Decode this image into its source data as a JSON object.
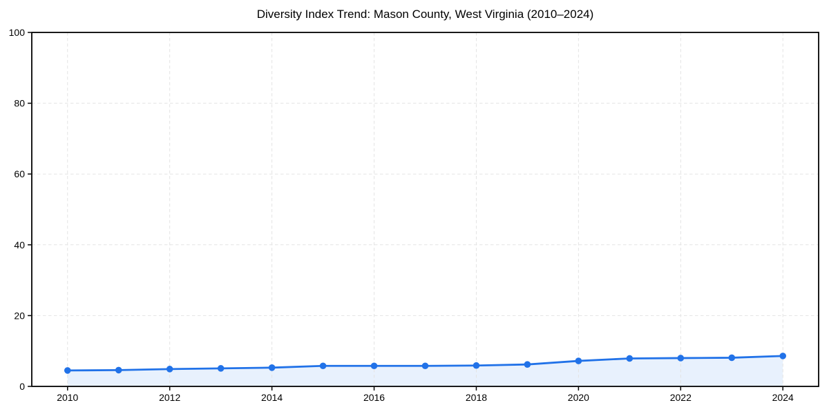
{
  "figure": {
    "title": "Diversity Index Trend: Mason County, West Virginia (2010–2024)"
  },
  "colors": {
    "background": "#ffffff",
    "line": "#2172e8",
    "marker": "#2172e8",
    "area_fill": "#2172e8",
    "area_fill_opacity": 0.1,
    "grid": "#e3e3e3",
    "axis": "#000000",
    "tick_text": "#000000",
    "title_text": "#000000"
  },
  "chart_data": {
    "type": "line",
    "title": "Diversity Index Trend: Mason County, West Virginia (2010–2024)",
    "xlabel": "",
    "ylabel": "",
    "xlim": [
      2009.3,
      2024.7
    ],
    "ylim": [
      0,
      100
    ],
    "xticks": [
      2010,
      2012,
      2014,
      2016,
      2018,
      2020,
      2022,
      2024
    ],
    "yticks": [
      0,
      20,
      40,
      60,
      80,
      100
    ],
    "grid": "dashed",
    "legend_position": "none",
    "marker_style": "circle",
    "area_fill": true,
    "series": [
      {
        "name": "Diversity Index",
        "x": [
          2010,
          2011,
          2012,
          2013,
          2014,
          2015,
          2016,
          2017,
          2018,
          2019,
          2020,
          2021,
          2022,
          2023,
          2024
        ],
        "values": [
          4.5,
          4.6,
          4.9,
          5.1,
          5.3,
          5.8,
          5.8,
          5.8,
          5.9,
          6.2,
          7.2,
          7.9,
          8.0,
          8.1,
          8.6
        ]
      }
    ]
  }
}
